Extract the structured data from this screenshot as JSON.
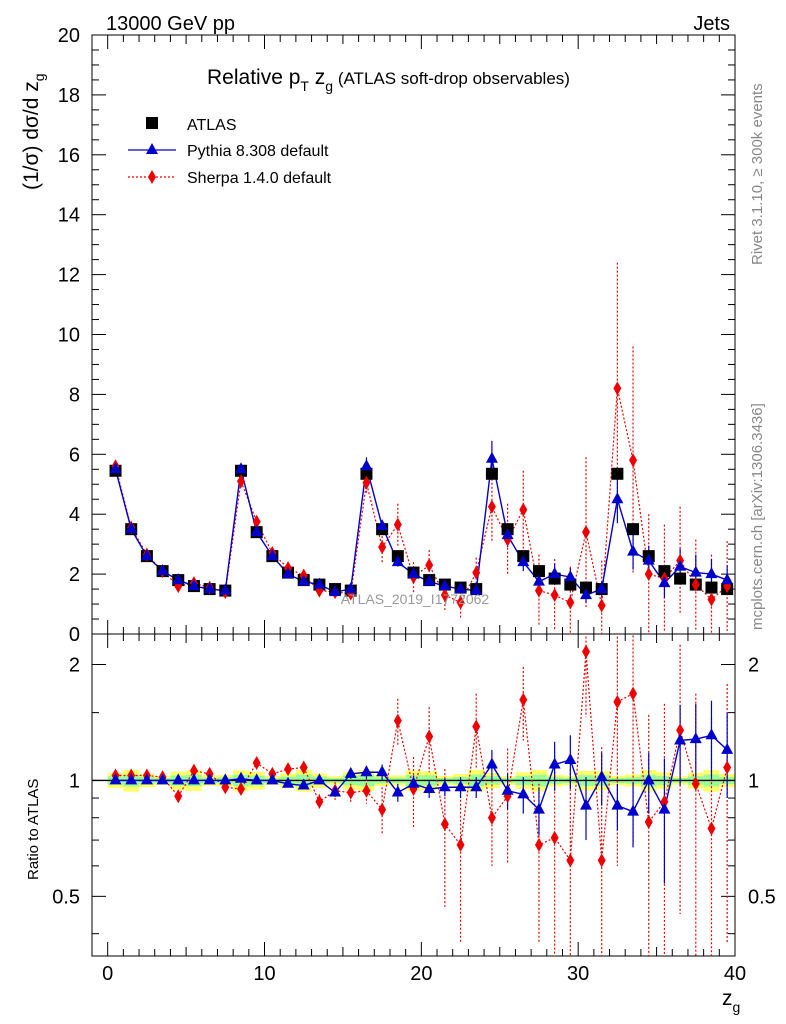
{
  "header": {
    "left": "13000 GeV pp",
    "right": "Jets",
    "side_top": "Rivet 3.1.10, ≥ 300k events",
    "side_bottom": "mcplots.cern.ch [arXiv:1306.3436]",
    "watermark": "ATLAS_2019_I1772062"
  },
  "chart_data": {
    "type": "scatter",
    "title_main": "Relative p",
    "title_sub_T": "T",
    "title_mid": " z",
    "title_sub_g": "g",
    "title_tail": " (ATLAS soft-drop observables)",
    "ylabel": "(1/σ) dσ/d z",
    "ylabel_sub": "g",
    "xlabel": "z",
    "xlabel_sub": "g",
    "ratio_ylabel": "Ratio to ATLAS",
    "xlim": [
      -1,
      40
    ],
    "ylim": [
      0,
      20
    ],
    "ratio_ylim": [
      0.35,
      2.4
    ],
    "x_ticks": [
      "0",
      "10",
      "20",
      "30",
      "40"
    ],
    "y_ticks": [
      "0",
      "2",
      "4",
      "6",
      "8",
      "10",
      "12",
      "14",
      "16",
      "18",
      "20"
    ],
    "ratio_ticks": [
      "0.5",
      "1",
      "2"
    ],
    "legend": [
      "ATLAS",
      "Pythia 8.308 default",
      "Sherpa 1.4.0 default"
    ],
    "colors": {
      "data": "#000000",
      "pythia": "#0000cc",
      "sherpa": "#ee0000",
      "band_inner": "#99ff99",
      "band_outer": "#ffff66"
    },
    "x": [
      0.5,
      1.5,
      2.5,
      3.5,
      4.5,
      5.5,
      6.5,
      7.5,
      8.5,
      9.5,
      10.5,
      11.5,
      12.5,
      13.5,
      14.5,
      15.5,
      16.5,
      17.5,
      18.5,
      19.5,
      20.5,
      21.5,
      22.5,
      23.5,
      24.5,
      25.5,
      26.5,
      27.5,
      28.5,
      29.5,
      30.5,
      31.5,
      32.5,
      33.5,
      34.5,
      35.5,
      36.5,
      37.5,
      38.5,
      39.5
    ],
    "series": [
      {
        "name": "ATLAS",
        "values": [
          5.45,
          3.5,
          2.6,
          2.1,
          1.8,
          1.6,
          1.5,
          1.45,
          5.45,
          3.4,
          2.6,
          2.05,
          1.8,
          1.65,
          1.5,
          1.45,
          5.35,
          3.5,
          2.6,
          2.05,
          1.8,
          1.65,
          1.55,
          1.5,
          5.35,
          3.5,
          2.6,
          2.1,
          1.85,
          1.65,
          1.55,
          1.5,
          5.35,
          3.5,
          2.6,
          2.1,
          1.85,
          1.65,
          1.55,
          1.5
        ]
      },
      {
        "name": "Pythia 8.308 default",
        "values": [
          5.5,
          3.5,
          2.6,
          2.1,
          1.8,
          1.6,
          1.5,
          1.45,
          5.5,
          3.4,
          2.6,
          2.0,
          1.75,
          1.65,
          1.4,
          1.5,
          5.6,
          3.6,
          2.4,
          2.0,
          1.75,
          1.6,
          1.5,
          1.45,
          5.85,
          3.3,
          2.4,
          1.75,
          2.0,
          1.9,
          1.3,
          1.5,
          4.5,
          2.75,
          2.45,
          1.7,
          2.25,
          2.05,
          2.0,
          1.8
        ],
        "errors": [
          0.05,
          0.05,
          0.05,
          0.05,
          0.05,
          0.05,
          0.05,
          0.05,
          0.1,
          0.1,
          0.1,
          0.1,
          0.05,
          0.05,
          0.05,
          0.05,
          0.3,
          0.2,
          0.15,
          0.15,
          0.15,
          0.15,
          0.15,
          0.15,
          0.6,
          0.4,
          0.3,
          0.3,
          0.35,
          0.3,
          0.25,
          0.25,
          0.8,
          0.6,
          0.5,
          0.5,
          0.6,
          0.6,
          0.5,
          0.5
        ]
      },
      {
        "name": "Sherpa 1.4.0 default",
        "values": [
          5.6,
          3.55,
          2.65,
          2.1,
          1.6,
          1.7,
          1.55,
          1.4,
          5.1,
          3.75,
          2.7,
          2.2,
          1.95,
          1.45,
          1.4,
          1.35,
          5.05,
          2.9,
          3.65,
          1.9,
          2.3,
          1.3,
          1.05,
          2.05,
          4.25,
          3.15,
          4.15,
          1.45,
          1.3,
          1.05,
          3.4,
          0.95,
          8.2,
          5.8,
          2.0,
          1.85,
          2.45,
          1.65,
          1.15,
          1.6
        ],
        "errors": [
          0.1,
          0.1,
          0.1,
          0.1,
          0.1,
          0.1,
          0.1,
          0.1,
          0.2,
          0.2,
          0.2,
          0.2,
          0.2,
          0.2,
          0.2,
          0.2,
          0.4,
          0.5,
          0.7,
          0.5,
          0.5,
          0.5,
          0.5,
          0.5,
          1.2,
          1.2,
          1.3,
          1.2,
          1.2,
          1.2,
          2.5,
          1.5,
          4.2,
          3.8,
          2.0,
          1.8,
          1.8,
          1.5,
          1.5,
          1.5
        ]
      }
    ],
    "ratio": {
      "pythia": [
        1.0,
        1.0,
        1.0,
        1.0,
        1.0,
        1.0,
        1.0,
        1.0,
        1.01,
        1.0,
        1.0,
        0.98,
        0.97,
        1.0,
        0.93,
        1.04,
        1.05,
        1.05,
        0.93,
        0.98,
        0.95,
        0.96,
        0.96,
        0.96,
        1.1,
        0.94,
        0.92,
        0.84,
        1.1,
        1.13,
        0.86,
        1.02,
        0.86,
        0.83,
        1.0,
        0.84,
        1.27,
        1.28,
        1.31,
        1.2
      ],
      "pythia_err": [
        0.01,
        0.01,
        0.01,
        0.01,
        0.01,
        0.01,
        0.01,
        0.01,
        0.02,
        0.02,
        0.02,
        0.02,
        0.02,
        0.02,
        0.02,
        0.03,
        0.04,
        0.05,
        0.05,
        0.05,
        0.05,
        0.05,
        0.06,
        0.06,
        0.1,
        0.1,
        0.1,
        0.12,
        0.16,
        0.18,
        0.16,
        0.16,
        0.12,
        0.16,
        0.18,
        0.3,
        0.3,
        0.3,
        0.3,
        0.3
      ],
      "sherpa": [
        1.03,
        1.03,
        1.03,
        1.02,
        0.91,
        1.06,
        1.04,
        0.96,
        0.95,
        1.11,
        1.04,
        1.07,
        1.08,
        0.88,
        0.94,
        0.93,
        0.94,
        0.84,
        1.43,
        0.95,
        1.3,
        0.77,
        0.68,
        1.38,
        0.8,
        0.91,
        1.62,
        0.68,
        0.71,
        0.62,
        2.16,
        0.62,
        1.6,
        1.68,
        0.78,
        0.88,
        1.35,
        0.98,
        0.75,
        1.08
      ],
      "sherpa_err": [
        0.03,
        0.03,
        0.03,
        0.03,
        0.03,
        0.03,
        0.03,
        0.03,
        0.03,
        0.03,
        0.03,
        0.03,
        0.04,
        0.04,
        0.05,
        0.05,
        0.07,
        0.12,
        0.2,
        0.2,
        0.25,
        0.3,
        0.3,
        0.3,
        0.2,
        0.3,
        0.35,
        0.3,
        0.45,
        0.45,
        0.7,
        0.6,
        1.0,
        1.0,
        0.7,
        0.7,
        0.9,
        0.7,
        0.7,
        0.7
      ]
    }
  }
}
